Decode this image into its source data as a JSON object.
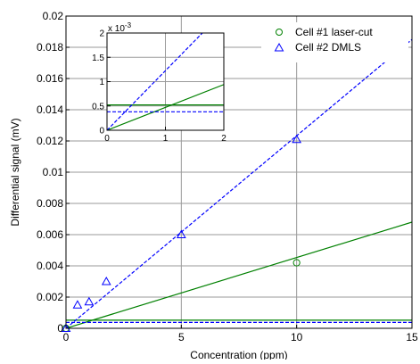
{
  "chart_data": [
    {
      "type": "scatter",
      "title": "",
      "xlabel": "Concentration (ppm)",
      "ylabel": "Differential signal (mV)",
      "xlim": [
        0,
        15
      ],
      "ylim": [
        0,
        0.02
      ],
      "xticks": [
        "0",
        "5",
        "10",
        "15"
      ],
      "yticks": [
        "0",
        "0.002",
        "0.004",
        "0.006",
        "0.008",
        "0.01",
        "0.012",
        "0.014",
        "0.016",
        "0.018",
        "0.02"
      ],
      "grid": true,
      "legend_position": "top-right",
      "series": [
        {
          "name": "Cell #1 laser-cut",
          "color": "#008000",
          "marker": "circle",
          "points": [
            [
              0,
              0.0
            ],
            [
              10,
              0.0042
            ]
          ],
          "fit_line": [
            [
              0,
              0.0
            ],
            [
              15,
              0.0068
            ]
          ],
          "baseline": 0.00052
        },
        {
          "name": "Cell #2 DMLS",
          "color": "#0000ff",
          "marker": "triangle",
          "points": [
            [
              0,
              0.0
            ],
            [
              0.5,
              0.0015
            ],
            [
              1,
              0.0017
            ],
            [
              1.75,
              0.003
            ],
            [
              5,
              0.006
            ],
            [
              10,
              0.0121
            ]
          ],
          "fit_line": [
            [
              0,
              0.0
            ],
            [
              15,
              0.0185
            ]
          ],
          "baseline": 0.00038
        }
      ]
    },
    {
      "type": "line",
      "title": "",
      "xlabel": "",
      "ylabel": "",
      "y_multiplier": "x 10",
      "y_exponent": "-3",
      "xlim": [
        0,
        2
      ],
      "ylim": [
        0,
        2
      ],
      "xticks": [
        "0",
        "1",
        "2"
      ],
      "yticks": [
        "0",
        "0.5",
        "1",
        "1.5",
        "2"
      ],
      "grid": true,
      "series": [
        {
          "name": "Cell #1 laser-cut",
          "color": "#008000",
          "fit_line": [
            [
              0,
              0.0
            ],
            [
              2,
              0.94
            ]
          ],
          "baseline": 0.52
        },
        {
          "name": "Cell #2 DMLS",
          "color": "#0000ff",
          "fit_line": [
            [
              0,
              0.0
            ],
            [
              2,
              2.45
            ]
          ],
          "baseline": 0.38
        }
      ]
    }
  ]
}
